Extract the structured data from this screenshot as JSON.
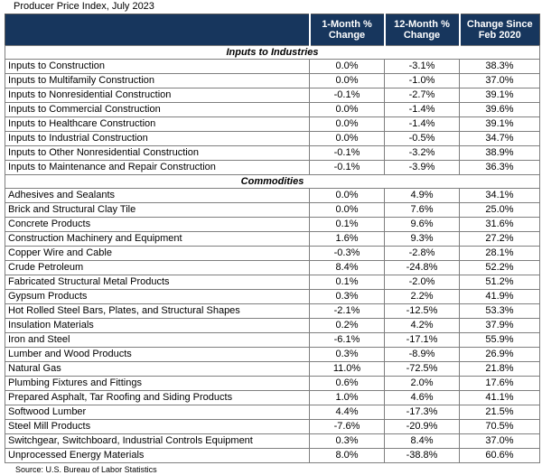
{
  "chart_data": {
    "type": "table",
    "title": "Producer Price Index, July 2023",
    "source": "Source: U.S. Bureau of Labor Statistics",
    "columns": [
      "",
      "1-Month % Change",
      "12-Month % Change",
      "Change Since Feb 2020"
    ],
    "colors": {
      "header_bg": "#17365D",
      "header_text": "#FFFFFF",
      "grid_line": "#7F7F7F",
      "body_bg": "#FFFFFF",
      "body_text": "#000000"
    },
    "sections": [
      {
        "label": "Inputs to Industries",
        "rows": [
          {
            "name": "Inputs to Construction",
            "m1": "0.0%",
            "m12": "-3.1%",
            "since": "38.3%"
          },
          {
            "name": "Inputs to Multifamily Construction",
            "m1": "0.0%",
            "m12": "-1.0%",
            "since": "37.0%"
          },
          {
            "name": "Inputs to Nonresidential Construction",
            "m1": "-0.1%",
            "m12": "-2.7%",
            "since": "39.1%"
          },
          {
            "name": "Inputs to Commercial Construction",
            "m1": "0.0%",
            "m12": "-1.4%",
            "since": "39.6%"
          },
          {
            "name": "Inputs to Healthcare Construction",
            "m1": "0.0%",
            "m12": "-1.4%",
            "since": "39.1%"
          },
          {
            "name": "Inputs to Industrial Construction",
            "m1": "0.0%",
            "m12": "-0.5%",
            "since": "34.7%"
          },
          {
            "name": "Inputs to Other Nonresidential Construction",
            "m1": "-0.1%",
            "m12": "-3.2%",
            "since": "38.9%"
          },
          {
            "name": "Inputs to Maintenance and Repair Construction",
            "m1": "-0.1%",
            "m12": "-3.9%",
            "since": "36.3%"
          }
        ]
      },
      {
        "label": "Commodities",
        "rows": [
          {
            "name": "Adhesives and Sealants",
            "m1": "0.0%",
            "m12": "4.9%",
            "since": "34.1%"
          },
          {
            "name": "Brick and Structural Clay Tile",
            "m1": "0.0%",
            "m12": "7.6%",
            "since": "25.0%"
          },
          {
            "name": "Concrete Products",
            "m1": "0.1%",
            "m12": "9.6%",
            "since": "31.6%"
          },
          {
            "name": "Construction Machinery and Equipment",
            "m1": "1.6%",
            "m12": "9.3%",
            "since": "27.2%"
          },
          {
            "name": "Copper Wire and Cable",
            "m1": "-0.3%",
            "m12": "-2.8%",
            "since": "28.1%"
          },
          {
            "name": "Crude Petroleum",
            "m1": "8.4%",
            "m12": "-24.8%",
            "since": "52.2%"
          },
          {
            "name": "Fabricated Structural Metal Products",
            "m1": "0.1%",
            "m12": "-2.0%",
            "since": "51.2%"
          },
          {
            "name": "Gypsum Products",
            "m1": "0.3%",
            "m12": "2.2%",
            "since": "41.9%"
          },
          {
            "name": "Hot Rolled Steel Bars, Plates, and Structural Shapes",
            "m1": "-2.1%",
            "m12": "-12.5%",
            "since": "53.3%"
          },
          {
            "name": "Insulation Materials",
            "m1": "0.2%",
            "m12": "4.2%",
            "since": "37.9%"
          },
          {
            "name": "Iron and Steel",
            "m1": "-6.1%",
            "m12": "-17.1%",
            "since": "55.9%"
          },
          {
            "name": "Lumber and Wood Products",
            "m1": "0.3%",
            "m12": "-8.9%",
            "since": "26.9%"
          },
          {
            "name": "Natural Gas",
            "m1": "11.0%",
            "m12": "-72.5%",
            "since": "21.8%"
          },
          {
            "name": "Plumbing Fixtures and Fittings",
            "m1": "0.6%",
            "m12": "2.0%",
            "since": "17.6%"
          },
          {
            "name": "Prepared Asphalt, Tar Roofing and Siding Products",
            "m1": "1.0%",
            "m12": "4.6%",
            "since": "41.1%"
          },
          {
            "name": "Softwood Lumber",
            "m1": "4.4%",
            "m12": "-17.3%",
            "since": "21.5%"
          },
          {
            "name": "Steel Mill Products",
            "m1": "-7.6%",
            "m12": "-20.9%",
            "since": "70.5%"
          },
          {
            "name": "Switchgear, Switchboard, Industrial Controls Equipment",
            "m1": "0.3%",
            "m12": "8.4%",
            "since": "37.0%"
          },
          {
            "name": "Unprocessed Energy Materials",
            "m1": "8.0%",
            "m12": "-38.8%",
            "since": "60.6%"
          }
        ]
      }
    ]
  }
}
